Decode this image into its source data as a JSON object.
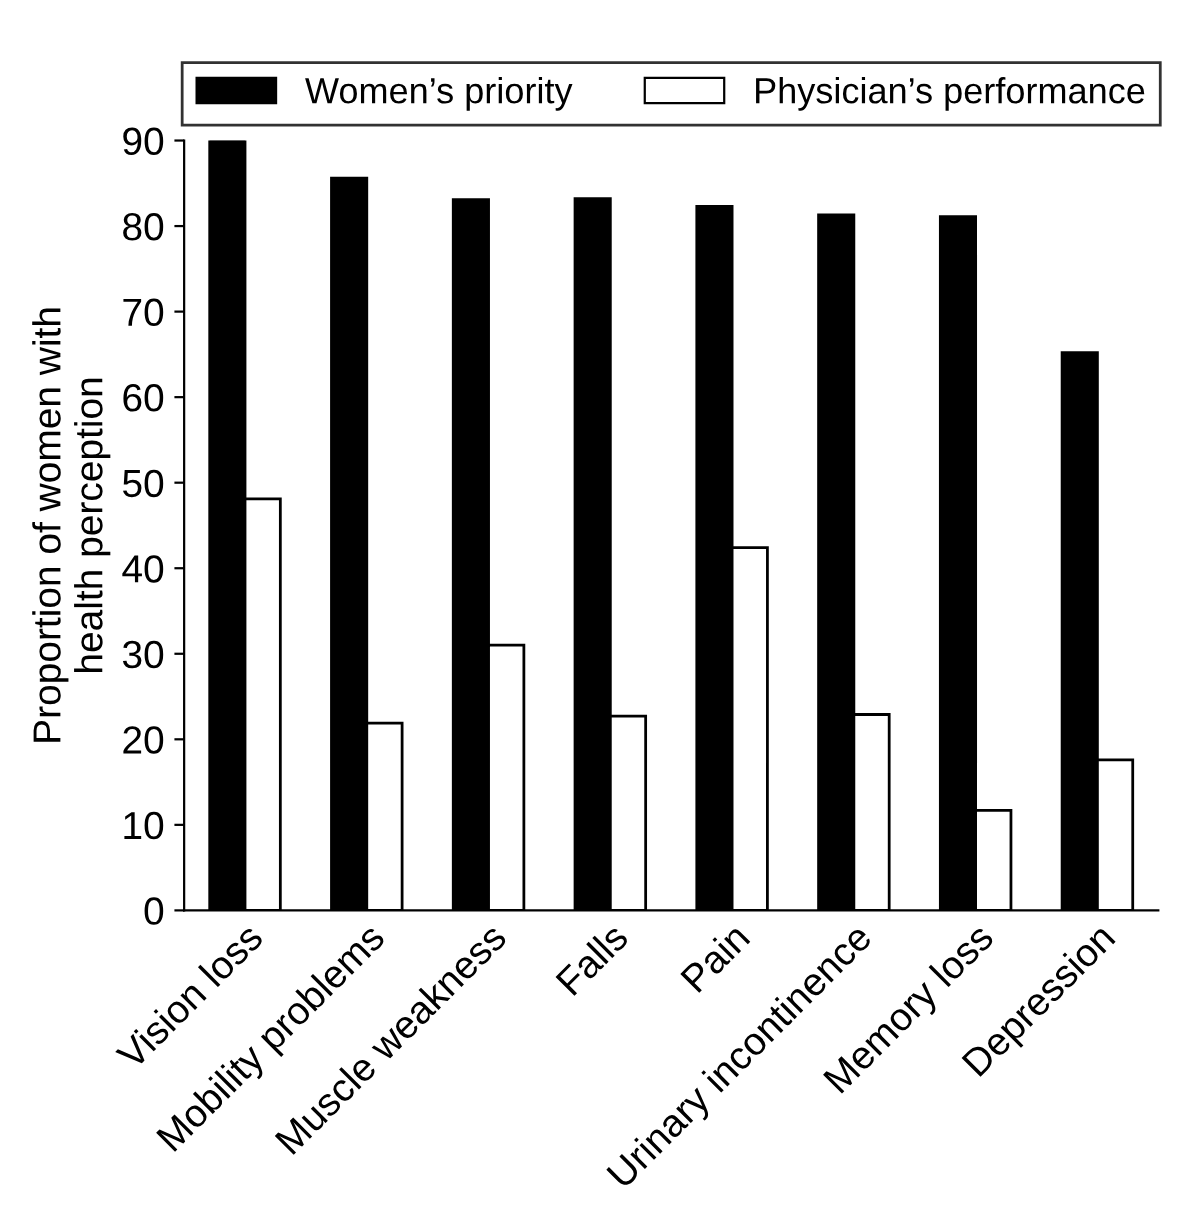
{
  "chart_data": {
    "type": "bar",
    "ylabel": "Proportion of women with\nhealth perception",
    "categories": [
      "Vision loss",
      "Mobility problems",
      "Muscle weakness",
      "Falls",
      "Pain",
      "Urinary incontinence",
      "Memory loss",
      "Depression"
    ],
    "series": [
      {
        "name": "Women’s priority",
        "color": "#000000",
        "values": [
          90,
          85.6,
          83.1,
          83.2,
          82.3,
          81.3,
          81.1,
          65.2
        ]
      },
      {
        "name": "Physician’s performance",
        "color": "#ffffff",
        "values": [
          48.1,
          21.9,
          31.0,
          22.7,
          42.4,
          22.9,
          11.7,
          17.6
        ]
      }
    ],
    "ylim": [
      0,
      90
    ],
    "yticks": [
      0,
      10,
      20,
      30,
      40,
      50,
      60,
      70,
      80,
      90
    ],
    "legend": "top",
    "grid": false
  }
}
